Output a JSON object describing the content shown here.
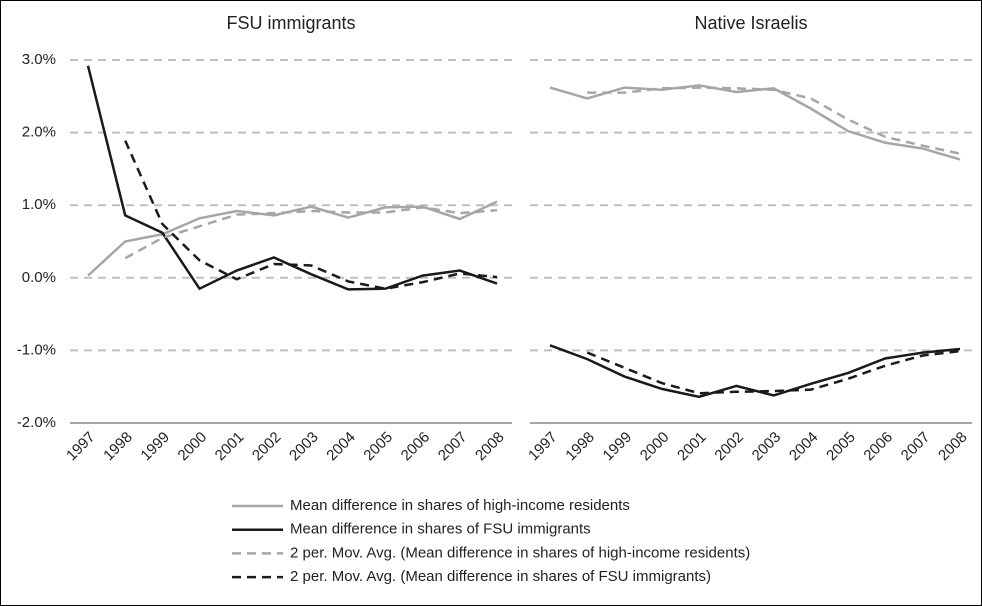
{
  "chart_data": [
    {
      "type": "line",
      "title": "FSU immigrants",
      "categories": [
        "1997",
        "1998",
        "1999",
        "2000",
        "2001",
        "2002",
        "2003",
        "2004",
        "2005",
        "2006",
        "2007",
        "2008"
      ],
      "ylim": [
        -2,
        3
      ],
      "yticks": [
        {
          "value": -2,
          "label": "-2.0%"
        },
        {
          "value": -1,
          "label": "-1.0%"
        },
        {
          "value": 0,
          "label": "0.0%"
        },
        {
          "value": 1,
          "label": "1.0%"
        },
        {
          "value": 2,
          "label": "2.0%"
        },
        {
          "value": 3,
          "label": "3.0%"
        }
      ],
      "grid": true,
      "series": [
        {
          "name": "Mean difference in shares of high-income residents",
          "color": "#a6a6a6",
          "dash": false,
          "values": [
            0.03,
            0.5,
            0.6,
            0.82,
            0.92,
            0.86,
            0.98,
            0.83,
            0.97,
            0.98,
            0.81,
            1.05
          ]
        },
        {
          "name": "Mean difference in shares of FSU immigrants",
          "color": "#1a1a1a",
          "dash": false,
          "values": [
            2.92,
            0.86,
            0.62,
            -0.15,
            0.1,
            0.28,
            0.05,
            -0.16,
            -0.15,
            0.03,
            0.1,
            -0.08
          ]
        },
        {
          "name": "2 per. Mov. Avg. (Mean difference in shares of high-income residents)",
          "color": "#a6a6a6",
          "dash": true,
          "values": [
            null,
            0.27,
            0.55,
            0.71,
            0.87,
            0.89,
            0.92,
            0.9,
            0.9,
            0.97,
            0.89,
            0.93
          ]
        },
        {
          "name": "2 per. Mov. Avg. (Mean difference in shares of FSU immigrants)",
          "color": "#1a1a1a",
          "dash": true,
          "values": [
            null,
            1.89,
            0.74,
            0.24,
            -0.02,
            0.19,
            0.17,
            -0.05,
            -0.15,
            -0.06,
            0.06,
            0.01
          ]
        }
      ]
    },
    {
      "type": "line",
      "title": "Native Israelis",
      "categories": [
        "1997",
        "1998",
        "1999",
        "2000",
        "2001",
        "2002",
        "2003",
        "2004",
        "2005",
        "2006",
        "2007",
        "2008"
      ],
      "ylim": [
        -2,
        3
      ],
      "yticks": [
        -2,
        -1,
        0,
        1,
        2,
        3
      ],
      "grid": true,
      "series": [
        {
          "name": "Mean difference in shares of high-income residents",
          "color": "#a6a6a6",
          "dash": false,
          "values": [
            2.62,
            2.47,
            2.62,
            2.59,
            2.65,
            2.56,
            2.61,
            2.33,
            2.02,
            1.86,
            1.78,
            1.63
          ]
        },
        {
          "name": "Mean difference in shares of FSU immigrants",
          "color": "#1a1a1a",
          "dash": false,
          "values": [
            -0.93,
            -1.12,
            -1.36,
            -1.53,
            -1.64,
            -1.49,
            -1.62,
            -1.46,
            -1.31,
            -1.11,
            -1.03,
            -0.98
          ]
        },
        {
          "name": "2 per. Mov. Avg. (Mean difference in shares of high-income residents)",
          "color": "#a6a6a6",
          "dash": true,
          "values": [
            null,
            2.55,
            2.55,
            2.61,
            2.62,
            2.61,
            2.59,
            2.47,
            2.18,
            1.94,
            1.82,
            1.71
          ]
        },
        {
          "name": "2 per. Mov. Avg. (Mean difference in shares of FSU immigrants)",
          "color": "#1a1a1a",
          "dash": true,
          "values": [
            null,
            -1.03,
            -1.24,
            -1.45,
            -1.59,
            -1.57,
            -1.56,
            -1.54,
            -1.39,
            -1.21,
            -1.07,
            -1.01
          ]
        }
      ]
    }
  ]
}
